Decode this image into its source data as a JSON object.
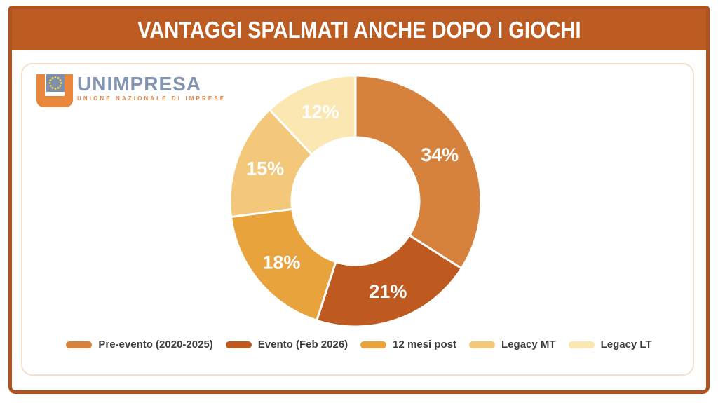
{
  "banner": {
    "title": "VANTAGGI SPALMATI ANCHE DOPO I GIOCHI"
  },
  "logo": {
    "name": "UNIMPRESA",
    "subtitle": "UNIONE NAZIONALE DI IMPRESE",
    "wordmark_color": "#8495b2",
    "subtitle_color": "#e8823c",
    "icon_orange": "#e9873e",
    "icon_blue": "#7e90ae",
    "icon_star_color": "#f7d94a"
  },
  "colors": {
    "banner_background": "#bc5c22",
    "frame_border": "#b0521e",
    "card_border": "#f5e0cc",
    "legend_text": "#3e3e3e",
    "slice_label_text": "#ffffff",
    "slice_separator": "#ffffff"
  },
  "chart_data": {
    "type": "pie",
    "subtype": "donut",
    "title": "VANTAGGI SPALMATI ANCHE DOPO I GIOCHI",
    "unit": "%",
    "start_angle_deg": 0,
    "direction": "clockwise",
    "inner_radius_ratio": 0.51,
    "legend_position": "bottom",
    "slices": [
      {
        "label": "Pre-evento (2020-2025)",
        "value": 34,
        "color": "#d6813c"
      },
      {
        "label": "Evento (Feb 2026)",
        "value": 21,
        "color": "#be5a20"
      },
      {
        "label": "12 mesi post",
        "value": 18,
        "color": "#e8a33c"
      },
      {
        "label": "Legacy MT",
        "value": 15,
        "color": "#f3c87a"
      },
      {
        "label": "Legacy LT",
        "value": 12,
        "color": "#fae7b2"
      }
    ]
  }
}
